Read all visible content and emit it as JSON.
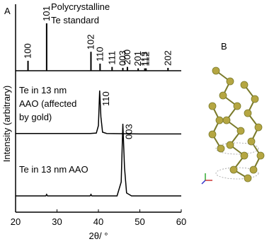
{
  "figure": {
    "panel_a": "A",
    "panel_b": "B",
    "ylabel": "Intensity (arbitrary)"
  },
  "chart_data": [
    {
      "type": "stem",
      "title_lines": [
        "Polycrystalline",
        "Te standard"
      ],
      "x": [
        23,
        27.5,
        38.2,
        40.4,
        43.3,
        45.9,
        47.0,
        49.6,
        51.2,
        51.5,
        56.8
      ],
      "values": [
        21,
        100,
        40,
        15,
        8,
        6,
        8,
        5,
        5,
        5,
        6
      ],
      "labels": [
        "100",
        "101",
        "102",
        "110",
        "111",
        "003",
        "200",
        "201",
        "113",
        "112",
        "202"
      ],
      "xlim": [
        20,
        60
      ],
      "ylim": [
        0,
        100
      ],
      "color": "#000000"
    },
    {
      "type": "line",
      "title_lines": [
        "Te in 13 nm",
        "AAO (affected",
        "by gold)"
      ],
      "peak_label": "110",
      "x": [
        20,
        30,
        38,
        39.5,
        40,
        40.3,
        40.6,
        41,
        42,
        50,
        60
      ],
      "values": [
        2,
        2,
        2,
        3,
        20,
        100,
        40,
        5,
        2,
        1,
        1
      ],
      "xlim": [
        20,
        60
      ],
      "ylim": [
        0,
        100
      ],
      "color": "#000000"
    },
    {
      "type": "line",
      "title_lines": [
        "Te in 13 nm AAO"
      ],
      "peak_label": "003",
      "x": [
        20,
        27.3,
        27.5,
        27.7,
        38,
        38.2,
        38.4,
        44.5,
        45.5,
        45.9,
        46.3,
        46.8,
        48,
        60
      ],
      "values": [
        1,
        1,
        3,
        1,
        1,
        3,
        1,
        1,
        20,
        100,
        40,
        5,
        1,
        1
      ],
      "xlim": [
        20,
        60
      ],
      "ylim": [
        0,
        100
      ],
      "color": "#000000",
      "xlabel": "2θ/ °",
      "xticks": [
        20,
        30,
        40,
        50,
        60
      ]
    }
  ]
}
